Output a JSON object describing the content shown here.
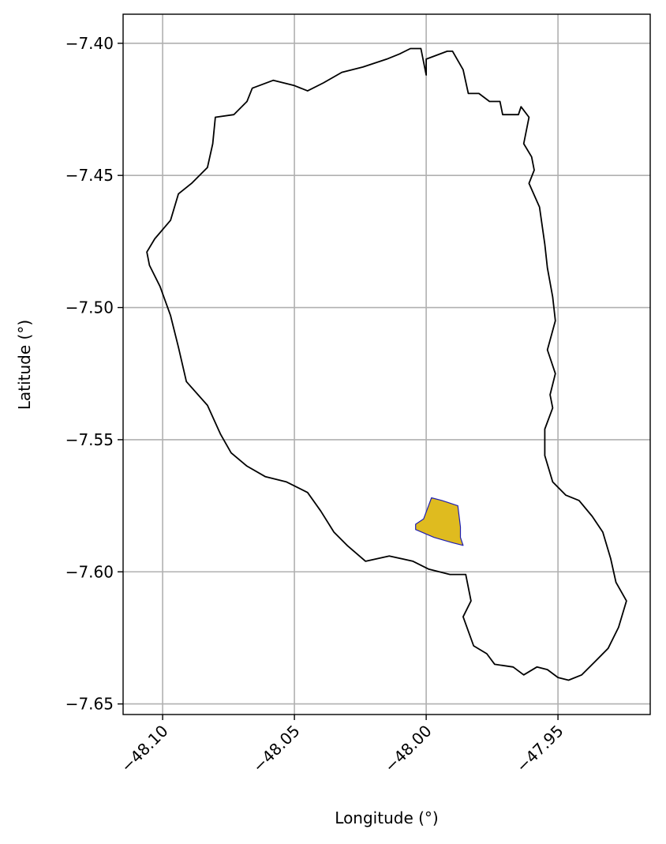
{
  "chart_data": {
    "type": "map",
    "title": "",
    "xlabel": "Longitude (°)",
    "ylabel": "Latitude (°)",
    "xlim": [
      -48.115,
      -47.915
    ],
    "ylim": [
      -7.654,
      -7.389
    ],
    "grid": true,
    "x_ticks": [
      {
        "value": -48.1,
        "label": "−48.10"
      },
      {
        "value": -48.05,
        "label": "−48.05"
      },
      {
        "value": -48.0,
        "label": "−48.00"
      },
      {
        "value": -47.95,
        "label": "−47.95"
      }
    ],
    "y_ticks": [
      {
        "value": -7.4,
        "label": "−7.40"
      },
      {
        "value": -7.45,
        "label": "−7.45"
      },
      {
        "value": -7.5,
        "label": "−7.50"
      },
      {
        "value": -7.55,
        "label": "−7.55"
      },
      {
        "value": -7.6,
        "label": "−7.60"
      },
      {
        "value": -7.65,
        "label": "−7.65"
      }
    ],
    "colors": {
      "boundary_stroke": "#000000",
      "highlight_fill": "#dfbb1f",
      "highlight_stroke": "#1f1fb4",
      "grid": "#b0b0b0"
    },
    "boundary": [
      [
        -48.006,
        -7.402
      ],
      [
        -48.002,
        -7.402
      ],
      [
        -48.0,
        -7.412
      ],
      [
        -48.0,
        -7.406
      ],
      [
        -47.992,
        -7.403
      ],
      [
        -47.99,
        -7.403
      ],
      [
        -47.986,
        -7.41
      ],
      [
        -47.984,
        -7.419
      ],
      [
        -47.98,
        -7.419
      ],
      [
        -47.976,
        -7.422
      ],
      [
        -47.972,
        -7.422
      ],
      [
        -47.971,
        -7.427
      ],
      [
        -47.965,
        -7.427
      ],
      [
        -47.964,
        -7.424
      ],
      [
        -47.961,
        -7.428
      ],
      [
        -47.963,
        -7.438
      ],
      [
        -47.96,
        -7.443
      ],
      [
        -47.959,
        -7.448
      ],
      [
        -47.961,
        -7.453
      ],
      [
        -47.957,
        -7.462
      ],
      [
        -47.955,
        -7.476
      ],
      [
        -47.954,
        -7.485
      ],
      [
        -47.952,
        -7.496
      ],
      [
        -47.951,
        -7.505
      ],
      [
        -47.954,
        -7.516
      ],
      [
        -47.951,
        -7.525
      ],
      [
        -47.953,
        -7.533
      ],
      [
        -47.952,
        -7.538
      ],
      [
        -47.955,
        -7.546
      ],
      [
        -47.955,
        -7.556
      ],
      [
        -47.952,
        -7.566
      ],
      [
        -47.947,
        -7.571
      ],
      [
        -47.942,
        -7.573
      ],
      [
        -47.937,
        -7.579
      ],
      [
        -47.933,
        -7.585
      ],
      [
        -47.93,
        -7.595
      ],
      [
        -47.928,
        -7.604
      ],
      [
        -47.924,
        -7.611
      ],
      [
        -47.927,
        -7.621
      ],
      [
        -47.931,
        -7.629
      ],
      [
        -47.936,
        -7.634
      ],
      [
        -47.941,
        -7.639
      ],
      [
        -47.946,
        -7.641
      ],
      [
        -47.95,
        -7.64
      ],
      [
        -47.954,
        -7.637
      ],
      [
        -47.958,
        -7.636
      ],
      [
        -47.963,
        -7.639
      ],
      [
        -47.967,
        -7.636
      ],
      [
        -47.974,
        -7.635
      ],
      [
        -47.977,
        -7.631
      ],
      [
        -47.982,
        -7.628
      ],
      [
        -47.986,
        -7.617
      ],
      [
        -47.983,
        -7.611
      ],
      [
        -47.985,
        -7.601
      ],
      [
        -47.991,
        -7.601
      ],
      [
        -47.999,
        -7.599
      ],
      [
        -48.005,
        -7.596
      ],
      [
        -48.014,
        -7.594
      ],
      [
        -48.023,
        -7.596
      ],
      [
        -48.03,
        -7.59
      ],
      [
        -48.035,
        -7.585
      ],
      [
        -48.04,
        -7.577
      ],
      [
        -48.045,
        -7.57
      ],
      [
        -48.053,
        -7.566
      ],
      [
        -48.061,
        -7.564
      ],
      [
        -48.068,
        -7.56
      ],
      [
        -48.074,
        -7.555
      ],
      [
        -48.078,
        -7.548
      ],
      [
        -48.083,
        -7.537
      ],
      [
        -48.091,
        -7.528
      ],
      [
        -48.094,
        -7.515
      ],
      [
        -48.097,
        -7.503
      ],
      [
        -48.101,
        -7.492
      ],
      [
        -48.105,
        -7.484
      ],
      [
        -48.106,
        -7.479
      ],
      [
        -48.103,
        -7.474
      ],
      [
        -48.097,
        -7.467
      ],
      [
        -48.094,
        -7.457
      ],
      [
        -48.089,
        -7.453
      ],
      [
        -48.083,
        -7.447
      ],
      [
        -48.081,
        -7.438
      ],
      [
        -48.08,
        -7.428
      ],
      [
        -48.073,
        -7.427
      ],
      [
        -48.068,
        -7.422
      ],
      [
        -48.066,
        -7.417
      ],
      [
        -48.058,
        -7.414
      ],
      [
        -48.05,
        -7.416
      ],
      [
        -48.045,
        -7.418
      ],
      [
        -48.039,
        -7.415
      ],
      [
        -48.032,
        -7.411
      ],
      [
        -48.024,
        -7.409
      ],
      [
        -48.015,
        -7.406
      ],
      [
        -48.01,
        -7.404
      ]
    ],
    "highlight": [
      [
        -47.998,
        -7.572
      ],
      [
        -47.994,
        -7.573
      ],
      [
        -47.988,
        -7.575
      ],
      [
        -47.987,
        -7.583
      ],
      [
        -47.987,
        -7.587
      ],
      [
        -47.986,
        -7.59
      ],
      [
        -47.99,
        -7.589
      ],
      [
        -47.997,
        -7.587
      ],
      [
        -48.004,
        -7.584
      ],
      [
        -48.004,
        -7.582
      ],
      [
        -48.001,
        -7.58
      ]
    ]
  }
}
